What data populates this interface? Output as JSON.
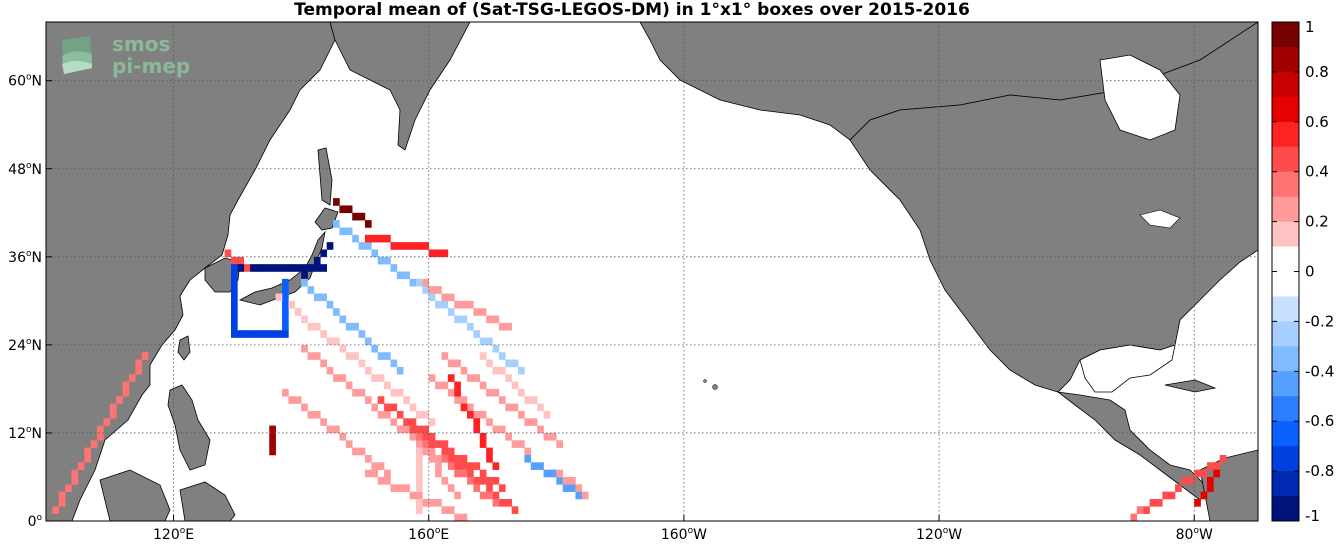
{
  "title": "Temporal mean of (Sat-TSG-LEGOS-DM) in 1°x1° boxes over 2015-2016",
  "logo": {
    "line1": "smos",
    "line2": "pi-mep"
  },
  "colors": {
    "land": "#808080",
    "ocean": "#ffffff",
    "grid": "#555555",
    "frame": "#000000"
  },
  "map": {
    "lon_range": [
      100,
      290
    ],
    "lat_range": [
      0,
      68
    ],
    "lon_ticks": [
      {
        "lon": 120,
        "deg": "120",
        "hem": "E"
      },
      {
        "lon": 160,
        "deg": "160",
        "hem": "E"
      },
      {
        "lon": 200,
        "deg": "160",
        "hem": "W"
      },
      {
        "lon": 240,
        "deg": "120",
        "hem": "W"
      },
      {
        "lon": 280,
        "deg": "80",
        "hem": "W"
      }
    ],
    "lat_ticks": [
      {
        "lat": 0,
        "deg": "0",
        "hem": ""
      },
      {
        "lat": 12,
        "deg": "12",
        "hem": "N"
      },
      {
        "lat": 24,
        "deg": "24",
        "hem": "N"
      },
      {
        "lat": 36,
        "deg": "36",
        "hem": "N"
      },
      {
        "lat": 48,
        "deg": "48",
        "hem": "N"
      },
      {
        "lat": 60,
        "deg": "60",
        "hem": "N"
      }
    ]
  },
  "colorbar": {
    "min": -1,
    "max": 1,
    "tick_labels": [
      "1",
      "0.8",
      "0.6",
      "0.4",
      "0.2",
      "0",
      "-0.2",
      "-0.4",
      "-0.6",
      "-0.8",
      "-1"
    ],
    "colors": [
      "#770000",
      "#a10000",
      "#c70000",
      "#e60000",
      "#ff2222",
      "#ff4b4b",
      "#ff7373",
      "#ff9b9b",
      "#ffc3c3",
      "#ffffff",
      "#ffffff",
      "#c8e1ff",
      "#a6cfff",
      "#7fbbff",
      "#559fff",
      "#2a7eff",
      "#0a5fff",
      "#0040e0",
      "#0028b0",
      "#00137a"
    ]
  },
  "grid_data": {
    "resolution_deg": 1,
    "variable": "Sat-TSG-LEGOS-DM",
    "tracks": [
      {
        "from": [
          101,
          1
        ],
        "to": [
          115,
          22
        ],
        "v": 0.4
      },
      {
        "from": [
          128,
          36
        ],
        "to": [
          131,
          34
        ],
        "v": 0.5
      },
      {
        "from": [
          145,
          43
        ],
        "to": [
          150,
          40
        ],
        "v": 1.0
      },
      {
        "from": [
          144,
          37
        ],
        "to": [
          140,
          33
        ],
        "v": -1.0
      },
      {
        "from": [
          130,
          34
        ],
        "to": [
          143,
          34
        ],
        "v": -1.0
      },
      {
        "from": [
          129,
          34
        ],
        "to": [
          129,
          25
        ],
        "v": -0.7
      },
      {
        "from": [
          130,
          25
        ],
        "to": [
          137,
          25
        ],
        "v": -0.7
      },
      {
        "from": [
          137,
          32
        ],
        "to": [
          137,
          26
        ],
        "v": -0.6
      },
      {
        "from": [
          145,
          40
        ],
        "to": [
          157,
          32
        ],
        "v": -0.3
      },
      {
        "from": [
          148,
          36
        ],
        "to": [
          160,
          24
        ],
        "v": 0.1
      },
      {
        "from": [
          150,
          38
        ],
        "to": [
          162,
          36
        ],
        "v": 0.6
      },
      {
        "from": [
          156,
          33
        ],
        "to": [
          174,
          20
        ],
        "v": -0.2
      },
      {
        "from": [
          158,
          32
        ],
        "to": [
          172,
          26
        ],
        "v": 0.3
      },
      {
        "from": [
          140,
          32
        ],
        "to": [
          155,
          20
        ],
        "v": -0.3
      },
      {
        "from": [
          136,
          30
        ],
        "to": [
          160,
          13
        ],
        "v": 0.2
      },
      {
        "from": [
          140,
          23
        ],
        "to": [
          161,
          8
        ],
        "v": 0.3
      },
      {
        "from": [
          137,
          17
        ],
        "to": [
          153,
          6
        ],
        "v": 0.3
      },
      {
        "from": [
          152,
          16
        ],
        "to": [
          173,
          1
        ],
        "v": 0.5
      },
      {
        "from": [
          155,
          14
        ],
        "to": [
          171,
          4
        ],
        "v": 0.5
      },
      {
        "from": [
          157,
          11
        ],
        "to": [
          164,
          3
        ],
        "v": 0.3
      },
      {
        "from": [
          160,
          19
        ],
        "to": [
          175,
          9
        ],
        "v": 0.3
      },
      {
        "from": [
          163,
          19
        ],
        "to": [
          170,
          7
        ],
        "v": 0.6
      },
      {
        "from": [
          162,
          22
        ],
        "to": [
          180,
          10
        ],
        "v": 0.3
      },
      {
        "from": [
          168,
          22
        ],
        "to": [
          178,
          14
        ],
        "v": 0.2
      },
      {
        "from": [
          175,
          8
        ],
        "to": [
          183,
          3
        ],
        "v": -0.4
      },
      {
        "from": [
          180,
          6
        ],
        "to": [
          184,
          3
        ],
        "v": 0.3
      },
      {
        "from": [
          156,
          12
        ],
        "to": [
          170,
          2
        ],
        "v": 0.4
      },
      {
        "from": [
          150,
          6
        ],
        "to": [
          165,
          0
        ],
        "v": 0.3
      },
      {
        "from": [
          135,
          12
        ],
        "to": [
          135,
          9
        ],
        "v": 0.8
      },
      {
        "from": [
          158,
          9
        ],
        "to": [
          158,
          1
        ],
        "v": 0.2
      },
      {
        "from": [
          272,
          1
        ],
        "to": [
          284,
          8
        ],
        "v": 0.5
      },
      {
        "from": [
          270,
          0
        ],
        "to": [
          284,
          8
        ],
        "v": 0.4
      },
      {
        "from": [
          280,
          2
        ],
        "to": [
          283,
          6
        ],
        "v": 0.7
      }
    ]
  }
}
